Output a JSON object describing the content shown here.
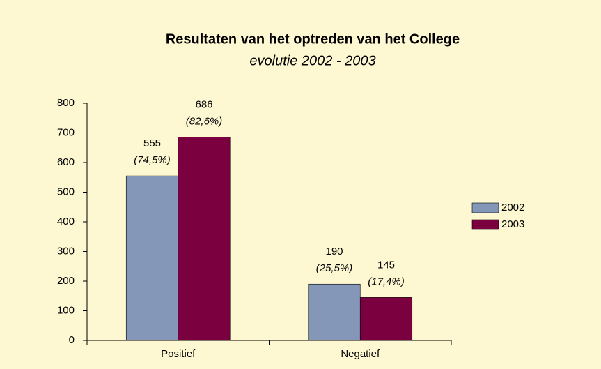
{
  "chart_data": {
    "type": "bar",
    "title": "Resultaten van het optreden van het College",
    "subtitle": "evolutie 2002 - 2003",
    "categories": [
      "Positief",
      "Negatief"
    ],
    "series": [
      {
        "name": "2002",
        "color": "#8497b8",
        "values": [
          555,
          190
        ],
        "share_labels": [
          "(74,5%)",
          "(25,5%)"
        ]
      },
      {
        "name": "2003",
        "color": "#7a0040",
        "values": [
          686,
          145
        ],
        "share_labels": [
          "(82,6%)",
          "(17,4%)"
        ]
      }
    ],
    "ylim": [
      0,
      800
    ],
    "yticks": [
      0,
      100,
      200,
      300,
      400,
      500,
      600,
      700,
      800
    ],
    "legend": "right"
  }
}
